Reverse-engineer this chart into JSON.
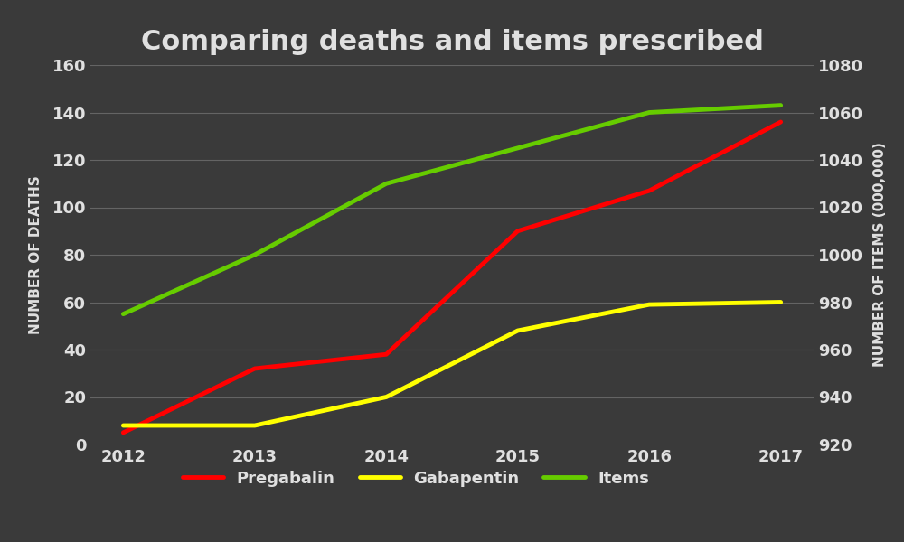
{
  "title": "Comparing deaths and items prescribed",
  "years": [
    2012,
    2013,
    2014,
    2015,
    2016,
    2017
  ],
  "pregabalin": [
    5,
    32,
    38,
    90,
    107,
    136
  ],
  "gabapentin": [
    8,
    8,
    20,
    48,
    59,
    60
  ],
  "items": [
    975,
    1000,
    1030,
    1045,
    1060,
    1063
  ],
  "left_ylim": [
    0,
    160
  ],
  "left_yticks": [
    0,
    20,
    40,
    60,
    80,
    100,
    120,
    140,
    160
  ],
  "right_ylim": [
    920,
    1080
  ],
  "right_yticks": [
    920,
    940,
    960,
    980,
    1000,
    1020,
    1040,
    1060,
    1080
  ],
  "ylabel_left": "NUMBER OF DEATHS",
  "ylabel_right": "NUMBER OF ITEMS (000,000)",
  "pregabalin_color": "#ff0000",
  "gabapentin_color": "#ffff00",
  "items_color": "#66cc00",
  "bg_color": "#3a3a3a",
  "text_color": "#e0e0e0",
  "grid_color": "#777777",
  "line_width": 3.5,
  "title_fontsize": 22,
  "label_fontsize": 11,
  "tick_fontsize": 13,
  "legend_fontsize": 13
}
